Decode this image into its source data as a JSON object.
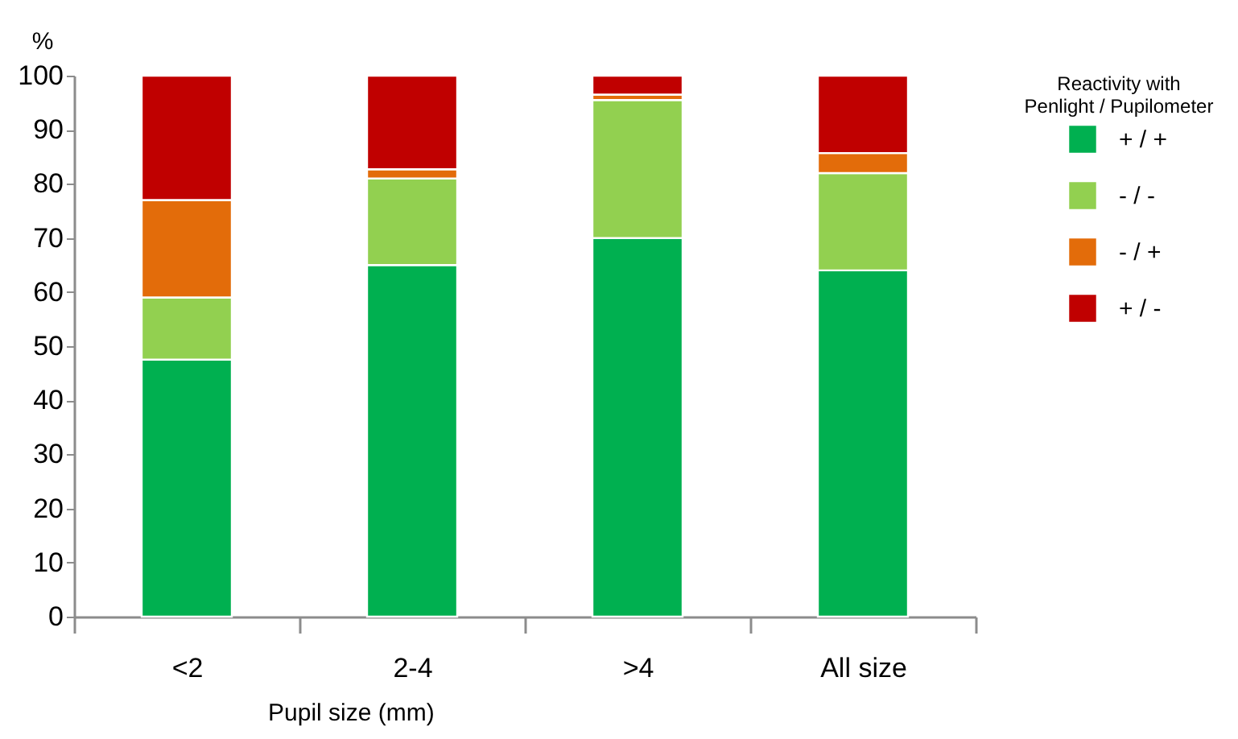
{
  "chart_data": {
    "type": "bar",
    "stacked": true,
    "ylabel": "%",
    "xlabel": "Pupil size (mm)",
    "legend_title": "Reactivity with\nPenlight / Pupilometer",
    "legend": "top right",
    "grid": false,
    "categories": [
      "<2",
      "2-4",
      ">4",
      "All size"
    ],
    "ylim": [
      0,
      100
    ],
    "yticks": [
      0,
      10,
      20,
      30,
      40,
      50,
      60,
      70,
      80,
      90,
      100
    ],
    "series": [
      {
        "name": "+ / +",
        "color": "#00b050",
        "values": [
          47.5,
          65,
          70,
          64
        ]
      },
      {
        "name": " - / -",
        "color": "#92d050",
        "values": [
          11.5,
          16,
          25.5,
          18
        ]
      },
      {
        "name": " - / +",
        "color": "#e36c0a",
        "values": [
          18,
          1.7,
          1,
          3.7
        ]
      },
      {
        "name": "+ / -",
        "color": "#c00000",
        "values": [
          23,
          17.3,
          3.5,
          14.3
        ]
      }
    ]
  }
}
